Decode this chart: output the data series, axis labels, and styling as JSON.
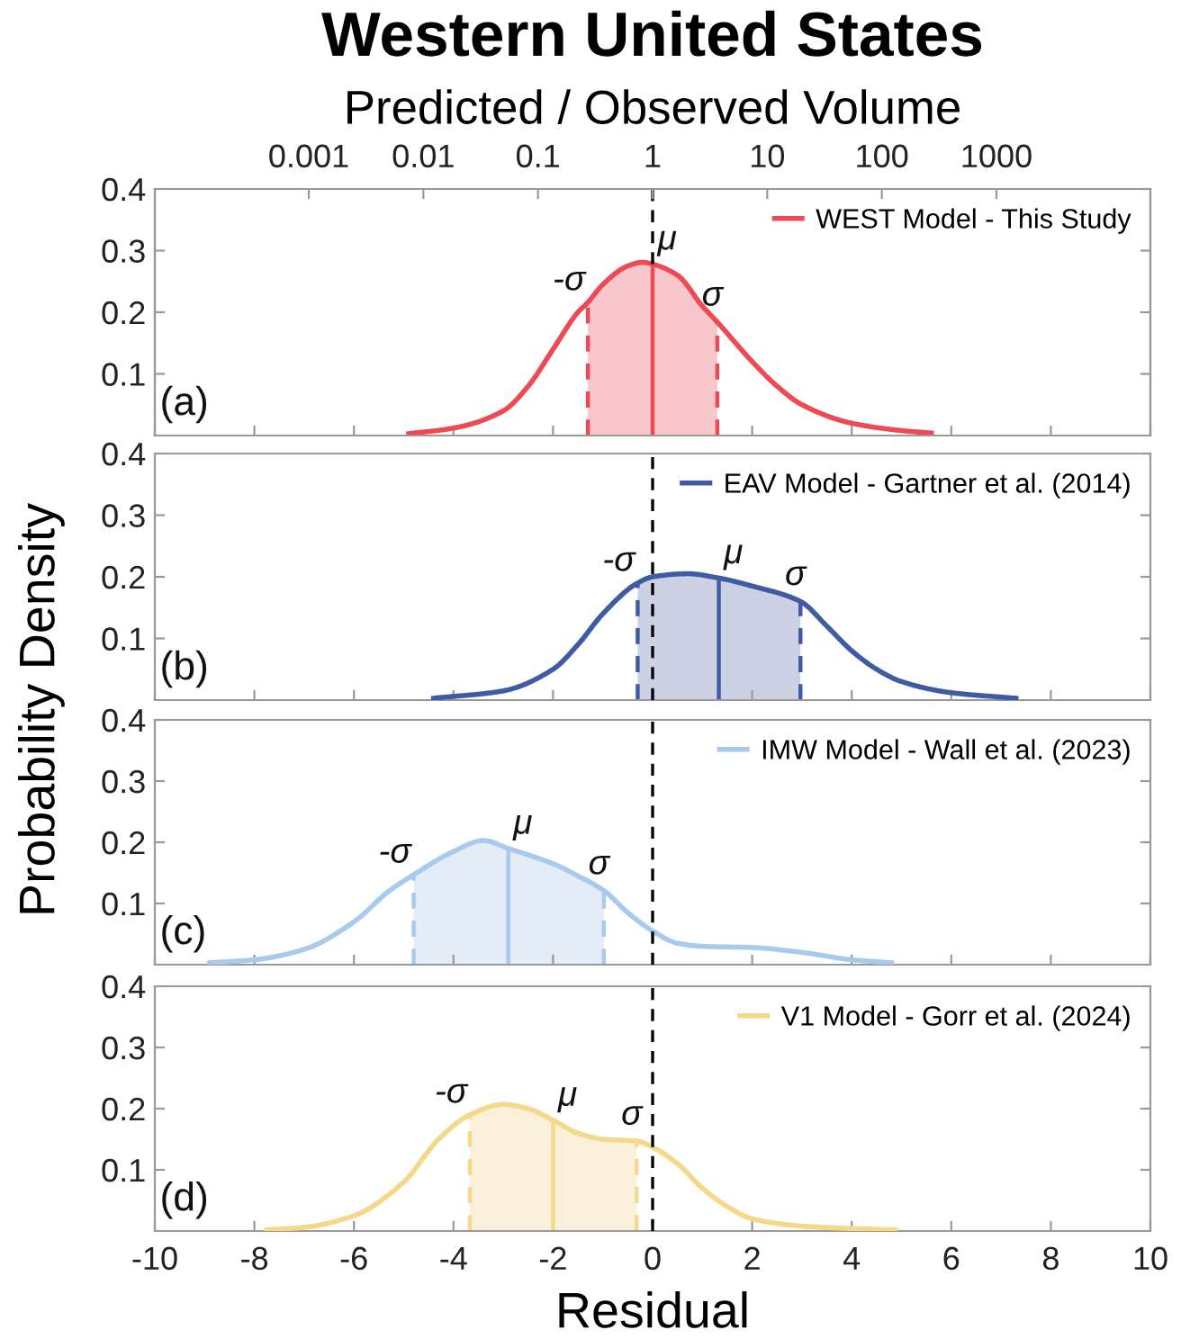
{
  "chart_data": [
    {
      "type": "line",
      "title": "Western United States",
      "x2label": "Predicted / Observed Volume",
      "ylabel": "Probability Density",
      "xlim": [
        -10,
        10
      ],
      "xticks": [
        -10,
        -8,
        -6,
        -4,
        -2,
        0,
        2,
        4,
        6,
        8,
        10
      ],
      "x2lim": [
        4.54e-05,
        22026
      ],
      "x2ticks": [
        0.001,
        0.01,
        0.1,
        1,
        10,
        100,
        1000
      ],
      "ylim": [
        0,
        0.4
      ],
      "yticks": [
        0.1,
        0.2,
        0.3,
        0.4
      ],
      "log": "x2",
      "tick_labels": "y",
      "grid": false,
      "legend": "top right",
      "annotations": [
        "(a)"
      ],
      "series": [
        {
          "name": "WEST Model - This Study",
          "color": "#ee4a55",
          "x": [
            -4.9,
            -4,
            -3,
            -2.5,
            -2,
            -1.5,
            -1.3,
            -1,
            -0.5,
            -0.2,
            0,
            0.5,
            1,
            1.3,
            2,
            2.5,
            3,
            4,
            5,
            5.6
          ],
          "values": [
            0.003,
            0.012,
            0.04,
            0.08,
            0.14,
            0.2,
            0.216,
            0.245,
            0.275,
            0.281,
            0.278,
            0.26,
            0.21,
            0.184,
            0.12,
            0.08,
            0.05,
            0.02,
            0.008,
            0.004
          ]
        }
      ],
      "bands": [
        {
          "axis": "x",
          "from": -1.3,
          "to": 1.3,
          "color": "#f8c7cb"
        }
      ],
      "ref_lines": [
        {
          "axis": "x",
          "value": 0,
          "color": "#000000",
          "line_style": "dashed"
        },
        {
          "axis": "x",
          "value": -1.3,
          "label": "-σ",
          "color": "#ee4a55",
          "line_style": "dashed"
        },
        {
          "axis": "x",
          "value": 0,
          "label": "μ",
          "color": "#ee4a55",
          "line_style": "solid"
        },
        {
          "axis": "x",
          "value": 1.3,
          "label": "σ",
          "color": "#ee4a55",
          "line_style": "dashed"
        }
      ]
    },
    {
      "type": "line",
      "xlim": [
        -10,
        10
      ],
      "xticks": [
        -10,
        -8,
        -6,
        -4,
        -2,
        0,
        2,
        4,
        6,
        8,
        10
      ],
      "ylim": [
        0,
        0.4
      ],
      "yticks": [
        0.1,
        0.2,
        0.3,
        0.4
      ],
      "tick_labels": "y",
      "grid": false,
      "legend": "top right",
      "annotations": [
        "(b)"
      ],
      "series": [
        {
          "name": "EAV Model - Gartner et al. (2014)",
          "color": "#3f5ba3",
          "x": [
            -4.4,
            -3,
            -2,
            -1.5,
            -1,
            -0.3,
            0,
            0.7,
            1.33,
            2,
            2.97,
            3.5,
            4,
            4.5,
            5,
            6,
            7.3
          ],
          "values": [
            0.003,
            0.015,
            0.05,
            0.09,
            0.14,
            0.19,
            0.2,
            0.205,
            0.198,
            0.185,
            0.16,
            0.12,
            0.08,
            0.05,
            0.03,
            0.012,
            0.003
          ]
        }
      ],
      "bands": [
        {
          "axis": "x",
          "from": -0.3,
          "to": 2.97,
          "color": "#ccd1e4"
        }
      ],
      "ref_lines": [
        {
          "axis": "x",
          "value": 0,
          "color": "#000000",
          "line_style": "dashed"
        },
        {
          "axis": "x",
          "value": -0.3,
          "label": "-σ",
          "color": "#3f5ba3",
          "line_style": "dashed"
        },
        {
          "axis": "x",
          "value": 1.33,
          "label": "μ",
          "color": "#3f5ba3",
          "line_style": "solid"
        },
        {
          "axis": "x",
          "value": 2.97,
          "label": "σ",
          "color": "#3f5ba3",
          "line_style": "dashed"
        }
      ]
    },
    {
      "type": "line",
      "xlim": [
        -10,
        10
      ],
      "xticks": [
        -10,
        -8,
        -6,
        -4,
        -2,
        0,
        2,
        4,
        6,
        8,
        10
      ],
      "ylim": [
        0,
        0.4
      ],
      "yticks": [
        0.1,
        0.2,
        0.3,
        0.4
      ],
      "tick_labels": "y",
      "grid": false,
      "legend": "top right",
      "annotations": [
        "(c)"
      ],
      "series": [
        {
          "name": "IMW Model - Wall et al. (2023)",
          "color": "#a8caec",
          "x": [
            -8.9,
            -8,
            -7,
            -6,
            -5.3,
            -4.8,
            -4,
            -3.4,
            -2.9,
            -2,
            -1.5,
            -0.98,
            -0.5,
            0,
            0.5,
            1,
            2,
            3,
            4,
            4.8
          ],
          "values": [
            0.003,
            0.008,
            0.025,
            0.07,
            0.12,
            0.147,
            0.185,
            0.203,
            0.19,
            0.165,
            0.145,
            0.121,
            0.085,
            0.055,
            0.035,
            0.03,
            0.028,
            0.02,
            0.008,
            0.003
          ]
        }
      ],
      "bands": [
        {
          "axis": "x",
          "from": -4.8,
          "to": -0.98,
          "color": "#e3ecf7"
        }
      ],
      "ref_lines": [
        {
          "axis": "x",
          "value": 0,
          "color": "#000000",
          "line_style": "dashed"
        },
        {
          "axis": "x",
          "value": -4.8,
          "label": "-σ",
          "color": "#a8caec",
          "line_style": "dashed"
        },
        {
          "axis": "x",
          "value": -2.9,
          "label": "μ",
          "color": "#a8caec",
          "line_style": "solid"
        },
        {
          "axis": "x",
          "value": -0.98,
          "label": "σ",
          "color": "#a8caec",
          "line_style": "dashed"
        }
      ]
    },
    {
      "type": "line",
      "xlabel": "Residual",
      "xlim": [
        -10,
        10
      ],
      "xticks": [
        -10,
        -8,
        -6,
        -4,
        -2,
        0,
        2,
        4,
        6,
        8,
        10
      ],
      "ylim": [
        0,
        0.4
      ],
      "yticks": [
        0.1,
        0.2,
        0.3,
        0.4
      ],
      "grid": false,
      "legend": "top right",
      "annotations": [
        "(d)"
      ],
      "series": [
        {
          "name": "V1 Model - Gorr et al. (2024)",
          "color": "#f4d98a",
          "x": [
            -7.75,
            -7,
            -6,
            -5,
            -4.3,
            -3.67,
            -3,
            -2.5,
            -2,
            -1.5,
            -1,
            -0.32,
            0,
            0.5,
            1,
            1.5,
            2,
            3,
            4,
            4.87
          ],
          "values": [
            0.002,
            0.006,
            0.025,
            0.08,
            0.15,
            0.19,
            0.207,
            0.2,
            0.181,
            0.16,
            0.15,
            0.147,
            0.137,
            0.11,
            0.07,
            0.04,
            0.02,
            0.008,
            0.004,
            0.002
          ]
        }
      ],
      "bands": [
        {
          "axis": "x",
          "from": -3.67,
          "to": -0.32,
          "color": "#fbf0d9"
        }
      ],
      "ref_lines": [
        {
          "axis": "x",
          "value": 0,
          "color": "#000000",
          "line_style": "dashed"
        },
        {
          "axis": "x",
          "value": -3.67,
          "label": "-σ",
          "color": "#f4d98a",
          "line_style": "dashed"
        },
        {
          "axis": "x",
          "value": -2,
          "label": "μ",
          "color": "#f4d98a",
          "line_style": "solid"
        },
        {
          "axis": "x",
          "value": -0.32,
          "label": "σ",
          "color": "#f4d98a",
          "line_style": "dashed"
        }
      ]
    }
  ]
}
